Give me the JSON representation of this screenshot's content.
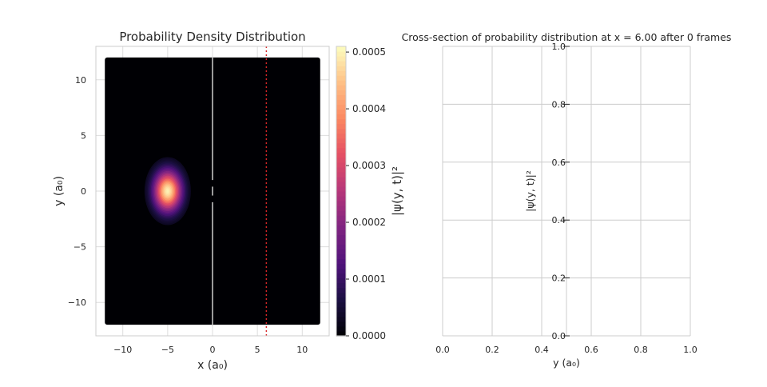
{
  "chart_data": [
    {
      "type": "heatmap",
      "title": "Probability Density Distribution",
      "xlabel": "x (a₀)",
      "ylabel": "y (a₀)",
      "xlim": [
        -13,
        13
      ],
      "ylim": [
        -13,
        13
      ],
      "xticks": [
        -10,
        -5,
        0,
        5,
        10
      ],
      "xtick_labels": [
        "−10",
        "−5",
        "0",
        "5",
        "10"
      ],
      "yticks": [
        10,
        5,
        0,
        -5,
        -10
      ],
      "ytick_labels": [
        "10",
        "5",
        "0",
        "−5",
        "−10"
      ],
      "domain": {
        "x": [
          -12,
          12
        ],
        "y": [
          -12,
          12
        ]
      },
      "wavepacket": {
        "center_x": -5,
        "center_y": 0,
        "sigma_x": 1.1,
        "sigma_y": 1.3,
        "peak": 0.0005
      },
      "barrier": {
        "x": 0,
        "segments": [
          [
            -12,
            -1
          ],
          [
            -0.4,
            0.4
          ],
          [
            1,
            12
          ]
        ]
      },
      "cross_section_x": 6.0,
      "cross_section_color": "#d62728",
      "grid": true,
      "colorbar": {
        "label": "|ψ(y, t)|²",
        "colormap": "magma",
        "range": [
          0,
          0.00051
        ],
        "ticks": [
          0,
          0.0001,
          0.0002,
          0.0003,
          0.0004,
          0.0005
        ],
        "tick_labels": [
          "0.0000",
          "0.0001",
          "0.0002",
          "0.0003",
          "0.0004",
          "0.0005"
        ]
      }
    },
    {
      "type": "line",
      "title": "Cross-section of probability distribution at x = 6.00 after 0 frames",
      "xlabel": "y (a₀)",
      "ylabel": "|ψ(y, t)|²",
      "xlim": [
        0,
        1
      ],
      "ylim": [
        0,
        1
      ],
      "xticks": [
        0,
        0.2,
        0.4,
        0.6,
        0.8,
        1.0
      ],
      "xtick_labels": [
        "0.0",
        "0.2",
        "0.4",
        "0.6",
        "0.8",
        "1.0"
      ],
      "yticks": [
        0,
        0.2,
        0.4,
        0.6,
        0.8,
        1.0
      ],
      "ytick_labels": [
        "0.0",
        "0.2",
        "0.4",
        "0.6",
        "0.8",
        "1.0"
      ],
      "yaxis_position": "center",
      "grid": true,
      "series": []
    }
  ]
}
